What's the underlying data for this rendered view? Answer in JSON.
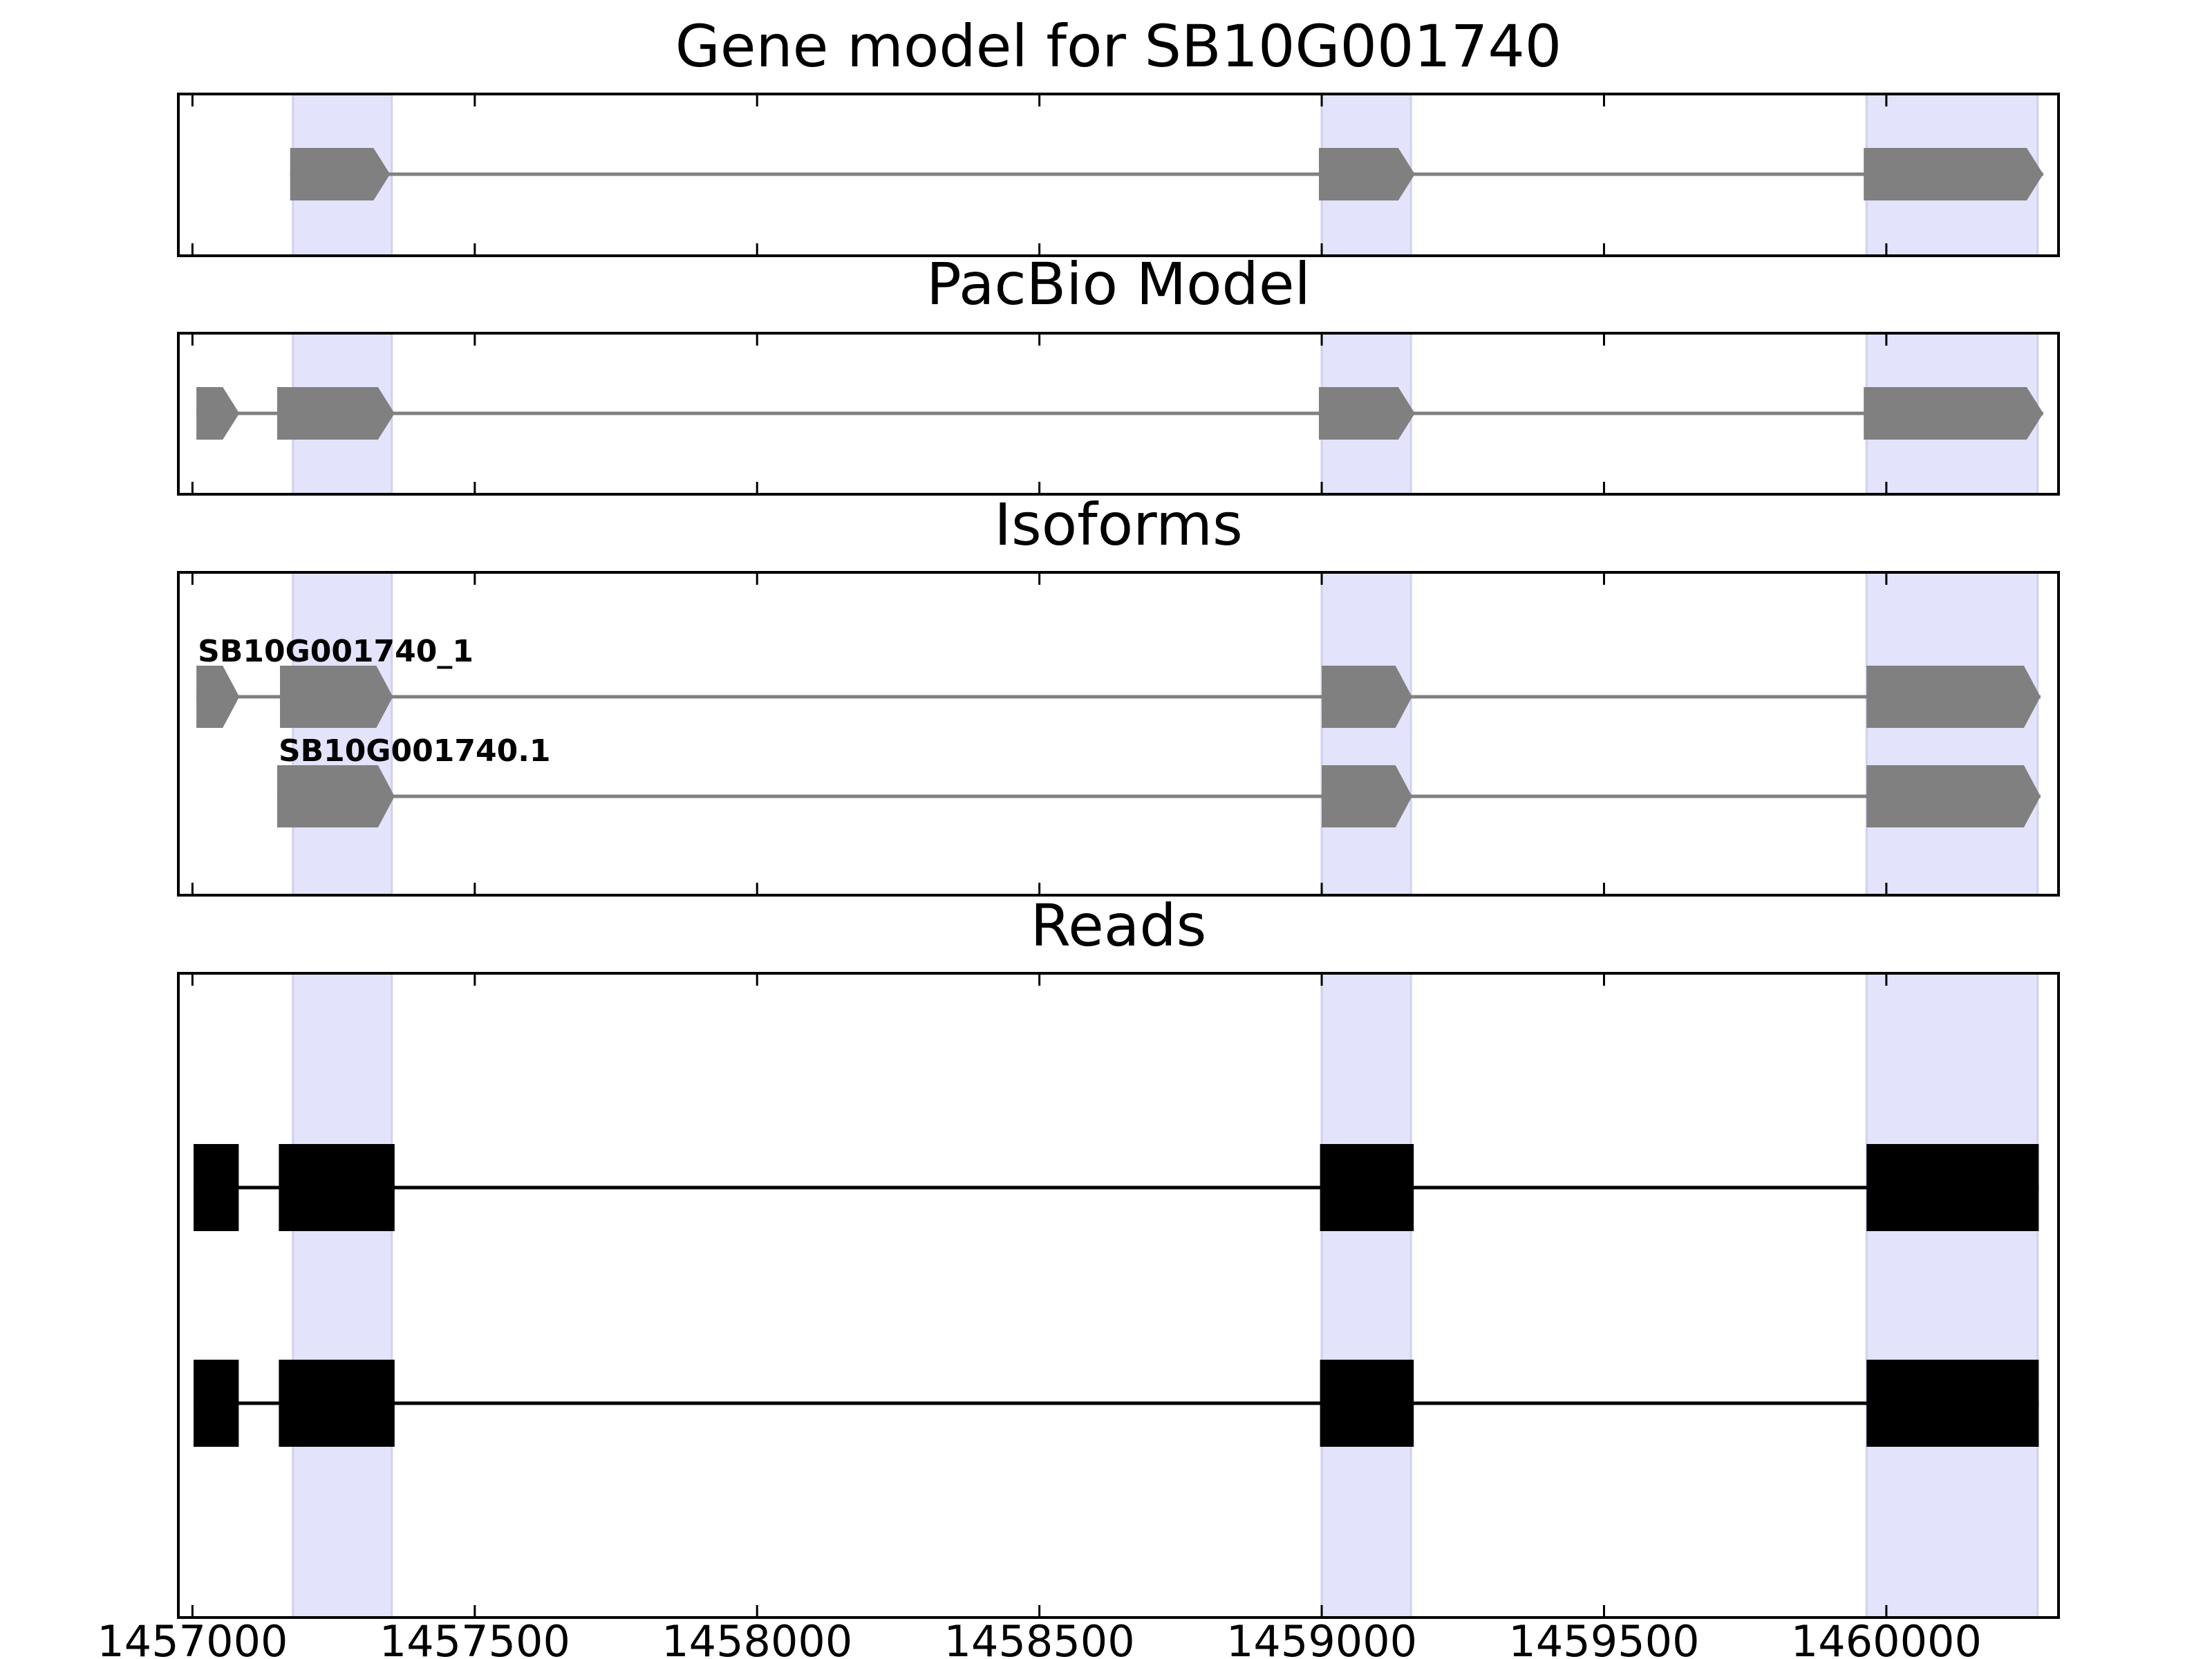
{
  "chart_data": {
    "type": "gene-structure",
    "x_axis": {
      "xlim": [
        1456975,
        1460305
      ],
      "ticks": [
        1457000,
        1457500,
        1458000,
        1458500,
        1459000,
        1459500,
        1460000
      ],
      "tick_labels": [
        "1457000",
        "1457500",
        "1458000",
        "1458500",
        "1459000",
        "1459500",
        "1460000"
      ]
    },
    "highlight_regions": [
      [
        1457178,
        1457353
      ],
      [
        1459000,
        1459158
      ],
      [
        1459965,
        1460268
      ]
    ],
    "highlight_color": "#e3e3fb",
    "feature_color": "#808080",
    "read_color": "#000000",
    "panels": [
      {
        "id": "gene-model",
        "title": "Gene model for SB10G001740",
        "kind": "model",
        "tracks": [
          {
            "label": "",
            "exons": [
              [
                1457173,
                1457350
              ],
              [
                1458995,
                1459165
              ],
              [
                1459960,
                1460278
              ]
            ]
          }
        ]
      },
      {
        "id": "pacbio-model",
        "title": "PacBio Model",
        "kind": "model",
        "tracks": [
          {
            "label": "",
            "exons": [
              [
                1457007,
                1457083
              ],
              [
                1457150,
                1457358
              ],
              [
                1458995,
                1459165
              ],
              [
                1459960,
                1460278
              ]
            ]
          }
        ]
      },
      {
        "id": "isoforms",
        "title": "Isoforms",
        "kind": "model",
        "tracks": [
          {
            "label": "SB10G001740_1",
            "exons": [
              [
                1457007,
                1457083
              ],
              [
                1457155,
                1457355
              ],
              [
                1459000,
                1459160
              ],
              [
                1459965,
                1460273
              ]
            ]
          },
          {
            "label": "SB10G001740.1",
            "exons": [
              [
                1457150,
                1457358
              ],
              [
                1459000,
                1459160
              ],
              [
                1459965,
                1460273
              ]
            ]
          }
        ]
      },
      {
        "id": "reads",
        "title": "Reads",
        "kind": "reads",
        "tracks": [
          {
            "label": "",
            "exons": [
              [
                1457002,
                1457082
              ],
              [
                1457153,
                1457358
              ],
              [
                1458997,
                1459163
              ],
              [
                1459965,
                1460270
              ]
            ]
          },
          {
            "label": "",
            "exons": [
              [
                1457002,
                1457082
              ],
              [
                1457153,
                1457358
              ],
              [
                1458997,
                1459163
              ],
              [
                1459965,
                1460270
              ]
            ]
          }
        ]
      }
    ]
  }
}
